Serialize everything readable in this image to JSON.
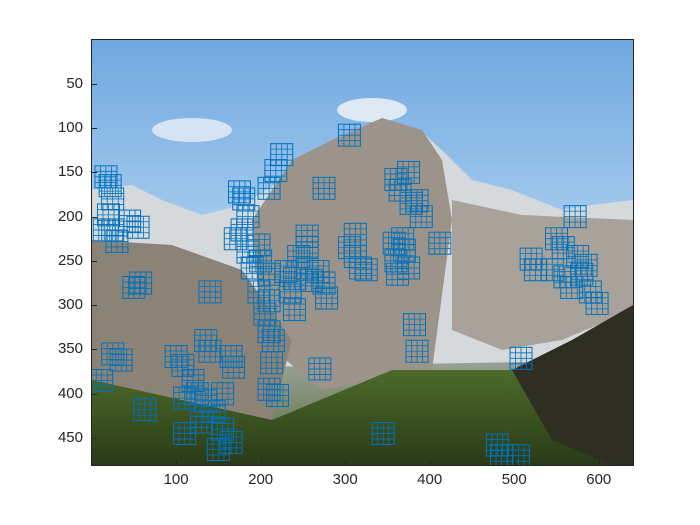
{
  "figure": {
    "x_ticks": [
      "100",
      "200",
      "300",
      "400",
      "500",
      "600"
    ],
    "y_ticks": [
      "50",
      "100",
      "150",
      "200",
      "250",
      "300",
      "350",
      "400",
      "450"
    ]
  },
  "image": {
    "description_name": "half-dome-landscape-photo",
    "x_range": [
      0.5,
      640.5
    ],
    "y_range": [
      0.5,
      480.5
    ],
    "y_reversed": true
  },
  "chart_data": {
    "type": "scatter",
    "title": "",
    "xlabel": "",
    "ylabel": "",
    "xlim": [
      0.5,
      640.5
    ],
    "ylim": [
      0.5,
      480.5
    ],
    "y_reversed": true,
    "grid": false,
    "marker": "square-grid-patch",
    "color": "#0072bd",
    "points": [
      {
        "x": 17,
        "y": 155
      },
      {
        "x": 22,
        "y": 165
      },
      {
        "x": 25,
        "y": 180
      },
      {
        "x": 20,
        "y": 198
      },
      {
        "x": 25,
        "y": 215
      },
      {
        "x": 45,
        "y": 205
      },
      {
        "x": 55,
        "y": 212
      },
      {
        "x": 30,
        "y": 228
      },
      {
        "x": 15,
        "y": 215
      },
      {
        "x": 50,
        "y": 280
      },
      {
        "x": 58,
        "y": 275
      },
      {
        "x": 25,
        "y": 355
      },
      {
        "x": 35,
        "y": 362
      },
      {
        "x": 12,
        "y": 385
      },
      {
        "x": 100,
        "y": 358
      },
      {
        "x": 108,
        "y": 368
      },
      {
        "x": 120,
        "y": 385
      },
      {
        "x": 110,
        "y": 405
      },
      {
        "x": 125,
        "y": 400
      },
      {
        "x": 135,
        "y": 340
      },
      {
        "x": 140,
        "y": 352
      },
      {
        "x": 135,
        "y": 408
      },
      {
        "x": 145,
        "y": 420
      },
      {
        "x": 130,
        "y": 432
      },
      {
        "x": 110,
        "y": 445
      },
      {
        "x": 155,
        "y": 440
      },
      {
        "x": 150,
        "y": 463
      },
      {
        "x": 165,
        "y": 455
      },
      {
        "x": 155,
        "y": 400
      },
      {
        "x": 165,
        "y": 358
      },
      {
        "x": 168,
        "y": 370
      },
      {
        "x": 63,
        "y": 418
      },
      {
        "x": 140,
        "y": 285
      },
      {
        "x": 175,
        "y": 172
      },
      {
        "x": 180,
        "y": 180
      },
      {
        "x": 185,
        "y": 200
      },
      {
        "x": 178,
        "y": 215
      },
      {
        "x": 170,
        "y": 225
      },
      {
        "x": 185,
        "y": 240
      },
      {
        "x": 198,
        "y": 232
      },
      {
        "x": 200,
        "y": 250
      },
      {
        "x": 190,
        "y": 258
      },
      {
        "x": 210,
        "y": 265
      },
      {
        "x": 198,
        "y": 285
      },
      {
        "x": 210,
        "y": 295
      },
      {
        "x": 205,
        "y": 310
      },
      {
        "x": 210,
        "y": 330
      },
      {
        "x": 215,
        "y": 340
      },
      {
        "x": 213,
        "y": 365
      },
      {
        "x": 210,
        "y": 395
      },
      {
        "x": 220,
        "y": 402
      },
      {
        "x": 218,
        "y": 148
      },
      {
        "x": 225,
        "y": 130
      },
      {
        "x": 210,
        "y": 168
      },
      {
        "x": 230,
        "y": 262
      },
      {
        "x": 240,
        "y": 270
      },
      {
        "x": 235,
        "y": 285
      },
      {
        "x": 255,
        "y": 222
      },
      {
        "x": 255,
        "y": 235
      },
      {
        "x": 245,
        "y": 245
      },
      {
        "x": 255,
        "y": 258
      },
      {
        "x": 260,
        "y": 272
      },
      {
        "x": 268,
        "y": 262
      },
      {
        "x": 275,
        "y": 275
      },
      {
        "x": 278,
        "y": 292
      },
      {
        "x": 275,
        "y": 168
      },
      {
        "x": 240,
        "y": 305
      },
      {
        "x": 270,
        "y": 372
      },
      {
        "x": 305,
        "y": 108
      },
      {
        "x": 312,
        "y": 220
      },
      {
        "x": 305,
        "y": 235
      },
      {
        "x": 312,
        "y": 245
      },
      {
        "x": 318,
        "y": 258
      },
      {
        "x": 325,
        "y": 260
      },
      {
        "x": 345,
        "y": 445
      },
      {
        "x": 360,
        "y": 158
      },
      {
        "x": 365,
        "y": 170
      },
      {
        "x": 375,
        "y": 150
      },
      {
        "x": 378,
        "y": 185
      },
      {
        "x": 385,
        "y": 182
      },
      {
        "x": 390,
        "y": 200
      },
      {
        "x": 358,
        "y": 230
      },
      {
        "x": 368,
        "y": 225
      },
      {
        "x": 370,
        "y": 238
      },
      {
        "x": 360,
        "y": 250
      },
      {
        "x": 362,
        "y": 265
      },
      {
        "x": 375,
        "y": 258
      },
      {
        "x": 382,
        "y": 322
      },
      {
        "x": 385,
        "y": 352
      },
      {
        "x": 412,
        "y": 230
      },
      {
        "x": 480,
        "y": 458
      },
      {
        "x": 485,
        "y": 470
      },
      {
        "x": 505,
        "y": 470
      },
      {
        "x": 508,
        "y": 360
      },
      {
        "x": 520,
        "y": 248
      },
      {
        "x": 525,
        "y": 260
      },
      {
        "x": 550,
        "y": 225
      },
      {
        "x": 558,
        "y": 235
      },
      {
        "x": 545,
        "y": 260
      },
      {
        "x": 560,
        "y": 268
      },
      {
        "x": 568,
        "y": 280
      },
      {
        "x": 572,
        "y": 200
      },
      {
        "x": 575,
        "y": 245
      },
      {
        "x": 585,
        "y": 255
      },
      {
        "x": 580,
        "y": 265
      },
      {
        "x": 590,
        "y": 285
      },
      {
        "x": 598,
        "y": 298
      }
    ]
  }
}
